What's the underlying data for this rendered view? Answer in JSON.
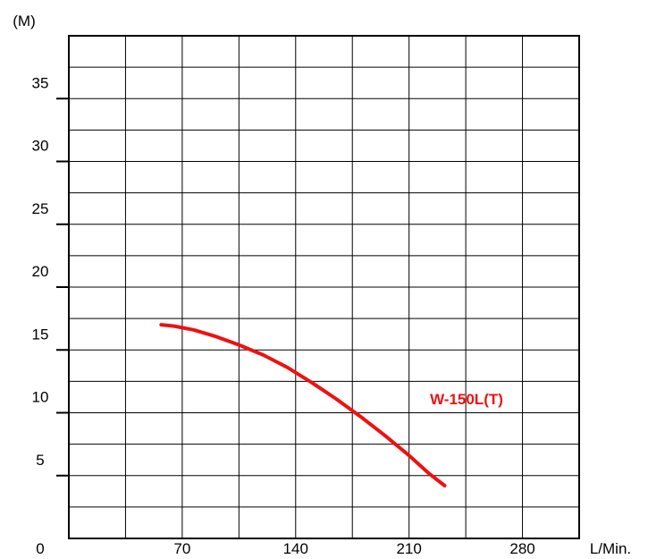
{
  "chart_data": {
    "type": "line",
    "y_unit_label": "(M)",
    "x_unit_label": "L/Min.",
    "origin_label": "0",
    "xlim": [
      0,
      315
    ],
    "ylim": [
      0,
      40
    ],
    "x_ticks": [
      70,
      140,
      210,
      280
    ],
    "y_ticks": [
      5,
      10,
      15,
      20,
      25,
      30,
      35
    ],
    "grid": true,
    "colors": {
      "frame": "#000000",
      "grid": "#000000",
      "series": "#ee1111"
    },
    "series": [
      {
        "name": "W-150L(T)",
        "x": [
          57,
          65,
          77,
          90,
          105,
          120,
          135,
          150,
          165,
          180,
          195,
          210,
          222,
          232
        ],
        "y": [
          17.0,
          16.9,
          16.6,
          16.1,
          15.4,
          14.6,
          13.6,
          12.4,
          11.1,
          9.7,
          8.2,
          6.6,
          5.2,
          4.2
        ]
      }
    ]
  }
}
